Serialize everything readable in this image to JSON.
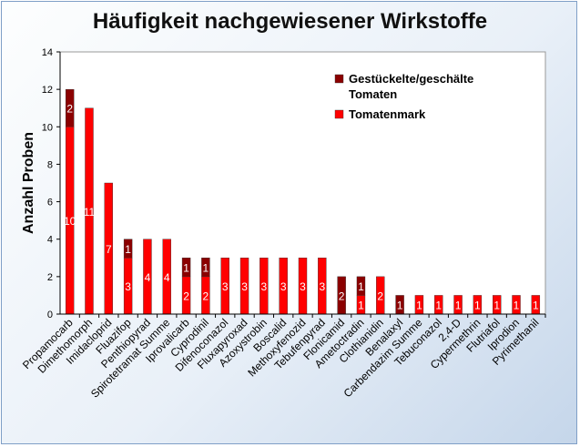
{
  "chart_data": {
    "type": "bar",
    "stacked": true,
    "title": "Häufigkeit nachgewiesener Wirkstoffe",
    "xlabel": "",
    "ylabel": "Anzahl Proben",
    "ylim": [
      0,
      14
    ],
    "yticks": [
      0,
      2,
      4,
      6,
      8,
      10,
      12,
      14
    ],
    "grid": false,
    "legend_position": "top-right",
    "categories": [
      "Propamocarb",
      "Dimethomorph",
      "Imidacloprid",
      "Fluazifop",
      "Penthiopyrad",
      "Spirotetramat Summe",
      "Iprovalicarb",
      "Cyprodinil",
      "Difenoconazol",
      "Fluxapyroxad",
      "Azoxystrobin",
      "Boscalid",
      "Methoxyfenozid",
      "Tebufenpyrad",
      "Flonicamid",
      "Ametoctradin",
      "Clothianidin",
      "Benalaxyl",
      "Carbendazim Summe",
      "Tebuconazol",
      "2,4-D",
      "Cypermethrin",
      "Flutriafol",
      "Iprodion",
      "Pyrimethanil"
    ],
    "series": [
      {
        "name": "Tomatenmark",
        "color": "#ff0000",
        "values": [
          10,
          11,
          7,
          3,
          4,
          4,
          2,
          2,
          3,
          3,
          3,
          3,
          3,
          3,
          0,
          1,
          2,
          0,
          1,
          1,
          1,
          1,
          1,
          1,
          1
        ]
      },
      {
        "name": "Gestückelte/geschälte Tomaten",
        "color": "#8b0000",
        "values": [
          2,
          0,
          0,
          1,
          0,
          0,
          1,
          1,
          0,
          0,
          0,
          0,
          0,
          0,
          2,
          1,
          0,
          1,
          0,
          0,
          0,
          0,
          0,
          0,
          0
        ]
      }
    ],
    "legend_order": [
      "Gestückelte/geschälte Tomaten",
      "Tomatenmark"
    ]
  }
}
